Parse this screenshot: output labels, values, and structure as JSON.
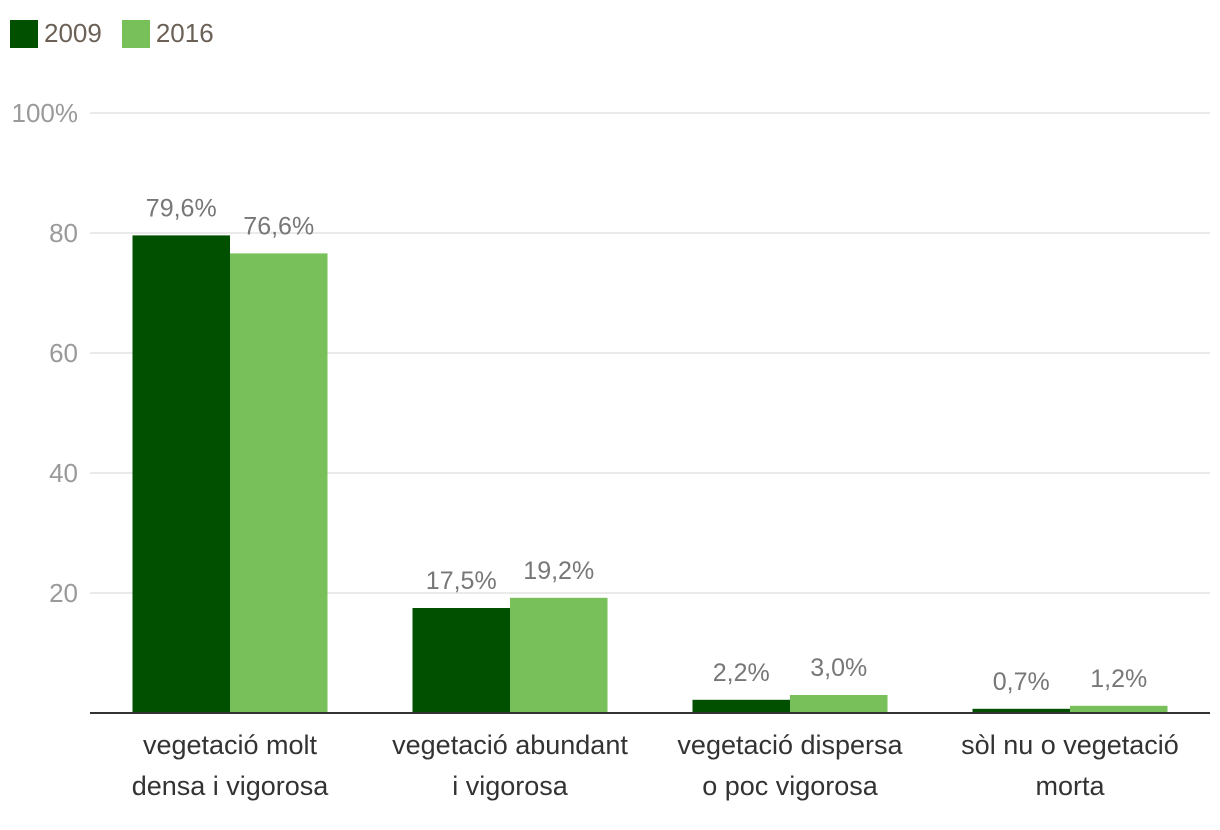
{
  "chart_data": {
    "type": "bar",
    "title": "",
    "xlabel": "",
    "ylabel": "",
    "ylim": [
      0,
      100
    ],
    "yticks": [
      {
        "value": 20,
        "label": "20"
      },
      {
        "value": 40,
        "label": "40"
      },
      {
        "value": 60,
        "label": "60"
      },
      {
        "value": 80,
        "label": "80"
      },
      {
        "value": 100,
        "label": "100%"
      }
    ],
    "categories": [
      [
        "vegetació molt",
        "densa i vigorosa"
      ],
      [
        "vegetació abundant",
        "i vigorosa"
      ],
      [
        "vegetació dispersa",
        "o poc vigorosa"
      ],
      [
        "sòl nu o vegetació",
        "morta"
      ]
    ],
    "series": [
      {
        "name": "2009",
        "color": "#005000",
        "values": [
          79.6,
          17.5,
          2.2,
          0.7
        ],
        "labels": [
          "79,6%",
          "17,5%",
          "2,2%",
          "0,7%"
        ]
      },
      {
        "name": "2016",
        "color": "#78c15a",
        "values": [
          76.6,
          19.2,
          3.0,
          1.2
        ],
        "labels": [
          "76,6%",
          "19,2%",
          "3,0%",
          "1,2%"
        ]
      }
    ],
    "grid": true,
    "legend": "top-left"
  }
}
